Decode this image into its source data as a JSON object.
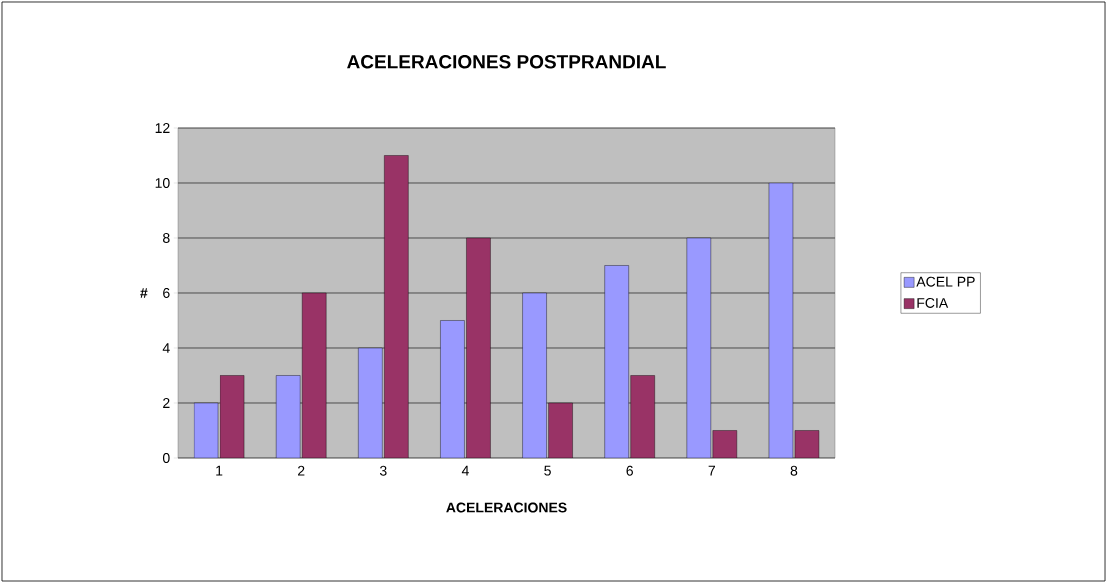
{
  "chart_data": {
    "type": "bar",
    "title": "ACELERACIONES POSTPRANDIAL",
    "xlabel": "ACELERACIONES",
    "ylabel": "#",
    "categories": [
      "1",
      "2",
      "3",
      "4",
      "5",
      "6",
      "7",
      "8"
    ],
    "series": [
      {
        "name": "ACEL PP",
        "color": "#9999ff",
        "values": [
          2,
          3,
          4,
          5,
          6,
          7,
          8,
          10
        ]
      },
      {
        "name": "FCIA",
        "color": "#993366",
        "values": [
          3,
          6,
          11,
          8,
          2,
          3,
          1,
          1
        ]
      }
    ],
    "ylim": [
      0,
      12
    ],
    "yticks": [
      0,
      2,
      4,
      6,
      8,
      10,
      12
    ],
    "grid": "y",
    "legend": "right"
  }
}
